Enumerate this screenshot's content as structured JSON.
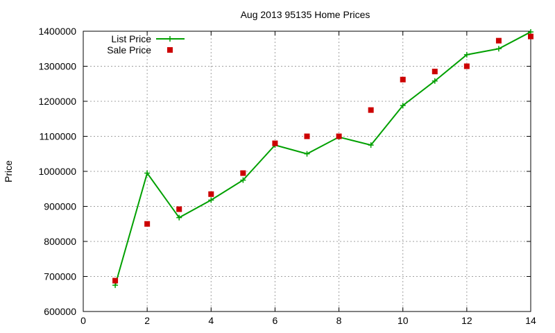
{
  "chart_data": {
    "type": "line",
    "title": "Aug 2013 95135 Home Prices",
    "xlabel": "",
    "ylabel": "Price",
    "xlim": [
      0,
      14
    ],
    "ylim": [
      600000,
      1400000
    ],
    "xticks": [
      0,
      2,
      4,
      6,
      8,
      10,
      12,
      14
    ],
    "yticks": [
      600000,
      700000,
      800000,
      900000,
      1000000,
      1100000,
      1200000,
      1300000,
      1400000
    ],
    "grid": true,
    "legend_position": "top-left",
    "series": [
      {
        "name": "List Price",
        "style": "line-with-plus-markers",
        "color": "#00a000",
        "x": [
          1,
          2,
          3,
          4,
          5,
          6,
          7,
          8,
          9,
          10,
          11,
          12,
          13,
          14
        ],
        "values": [
          675000,
          995000,
          868000,
          918000,
          975000,
          1075000,
          1050000,
          1098000,
          1075000,
          1188000,
          1258000,
          1333000,
          1350000,
          1398000
        ]
      },
      {
        "name": "Sale Price",
        "style": "square-markers",
        "color": "#cc0000",
        "x": [
          1,
          2,
          3,
          4,
          5,
          6,
          7,
          8,
          9,
          10,
          11,
          12,
          13,
          14
        ],
        "values": [
          688000,
          850000,
          892000,
          935000,
          995000,
          1080000,
          1100000,
          1100000,
          1175000,
          1262000,
          1285000,
          1300000,
          1373000,
          1385000
        ]
      }
    ]
  }
}
